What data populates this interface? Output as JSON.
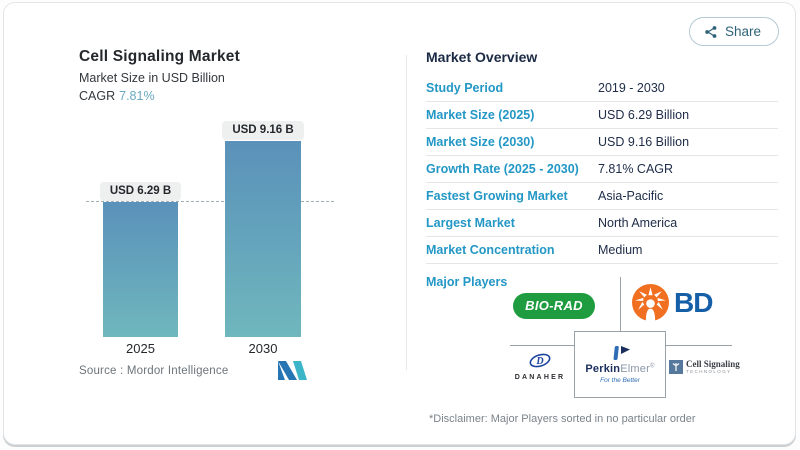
{
  "share": {
    "label": "Share"
  },
  "chart_data": {
    "type": "bar",
    "title": "Cell Signaling Market",
    "subtitle": "Market Size in USD Billion",
    "cagr_label": "CAGR",
    "cagr_value": "7.81%",
    "categories": [
      "2025",
      "2030"
    ],
    "values": [
      6.29,
      9.16
    ],
    "value_labels": [
      "USD 6.29 B",
      "USD 9.16 B"
    ],
    "unit": "USD Billion",
    "ylim": [
      0,
      9.16
    ],
    "reference_value": 6.29,
    "grid": false,
    "source": "Source :  Mordor Intelligence",
    "bar_colors": [
      "#5a91ba",
      "#6fb7bd"
    ],
    "accent_color": "#2397c5"
  },
  "overview": {
    "heading": "Market Overview",
    "rows": [
      {
        "label": "Study Period",
        "value": "2019 - 2030"
      },
      {
        "label": "Market Size (2025)",
        "value": "USD 6.29 Billion"
      },
      {
        "label": "Market Size (2030)",
        "value": "USD 9.16 Billion"
      },
      {
        "label": "Growth Rate (2025 - 2030)",
        "value": "7.81% CAGR"
      },
      {
        "label": "Fastest Growing Market",
        "value": "Asia-Pacific"
      },
      {
        "label": "Largest Market",
        "value": "North America"
      },
      {
        "label": "Market Concentration",
        "value": "Medium"
      }
    ],
    "players": {
      "label": "Major Players",
      "logos": {
        "biorad": "BIO-RAD",
        "bd": "BD",
        "danaher": "DANAHER",
        "danaher_mark": "D",
        "perkin_bold": "Perkin",
        "perkin_light": "Elmer",
        "perkin_reg": "®",
        "perkin_tagline": "For the Better",
        "cst_name": "Cell Signaling",
        "cst_sub": "TECHNOLOGY"
      }
    },
    "disclaimer": "*Disclaimer: Major Players sorted in no particular order"
  }
}
